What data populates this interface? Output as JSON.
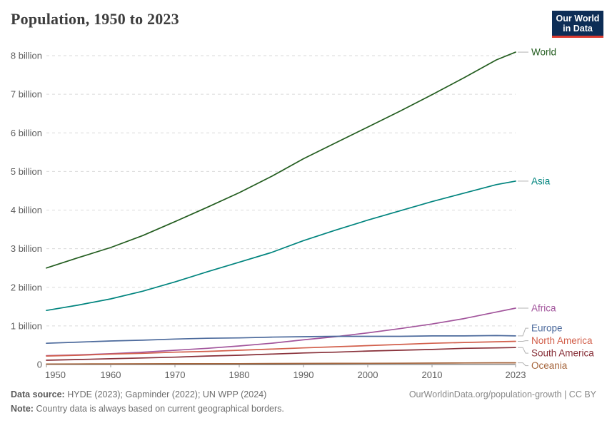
{
  "header": {
    "title": "Population, 1950 to 2023",
    "logo": {
      "line1": "Our World",
      "line2": "in Data",
      "bg_color": "#0d2d56",
      "accent_color": "#dc3a2f"
    }
  },
  "chart_data": {
    "type": "line",
    "title": "Population, 1950 to 2023",
    "xlabel": "",
    "ylabel": "",
    "xlim": [
      1950,
      2023
    ],
    "ylim": [
      0,
      8.35
    ],
    "grid": "horizontal-dashed",
    "legend_position": "right-of-line-ends",
    "x": [
      1950,
      1955,
      1960,
      1965,
      1970,
      1975,
      1980,
      1985,
      1990,
      1995,
      2000,
      2005,
      2010,
      2015,
      2020,
      2023
    ],
    "series": [
      {
        "name": "World",
        "color": "#235d1f",
        "values": [
          2.5,
          2.77,
          3.03,
          3.34,
          3.7,
          4.07,
          4.45,
          4.87,
          5.33,
          5.74,
          6.15,
          6.56,
          6.99,
          7.43,
          7.89,
          8.09
        ]
      },
      {
        "name": "Asia",
        "color": "#00847e",
        "values": [
          1.4,
          1.54,
          1.7,
          1.9,
          2.14,
          2.4,
          2.65,
          2.9,
          3.21,
          3.48,
          3.74,
          3.98,
          4.22,
          4.44,
          4.66,
          4.75
        ]
      },
      {
        "name": "Africa",
        "color": "#a2559c",
        "values": [
          0.23,
          0.25,
          0.28,
          0.32,
          0.37,
          0.42,
          0.48,
          0.55,
          0.64,
          0.72,
          0.82,
          0.93,
          1.05,
          1.19,
          1.36,
          1.46
        ]
      },
      {
        "name": "Europe",
        "color": "#4c6a9c",
        "values": [
          0.55,
          0.58,
          0.61,
          0.63,
          0.66,
          0.68,
          0.69,
          0.71,
          0.72,
          0.73,
          0.73,
          0.73,
          0.74,
          0.74,
          0.75,
          0.74
        ]
      },
      {
        "name": "North America",
        "color": "#d25f4b",
        "values": [
          0.22,
          0.24,
          0.27,
          0.29,
          0.32,
          0.34,
          0.37,
          0.4,
          0.43,
          0.46,
          0.49,
          0.52,
          0.55,
          0.57,
          0.59,
          0.6
        ]
      },
      {
        "name": "South America",
        "color": "#883039",
        "values": [
          0.11,
          0.13,
          0.15,
          0.17,
          0.19,
          0.22,
          0.24,
          0.27,
          0.3,
          0.32,
          0.35,
          0.37,
          0.39,
          0.42,
          0.43,
          0.44
        ]
      },
      {
        "name": "Oceania",
        "color": "#a5653c",
        "values": [
          0.013,
          0.014,
          0.016,
          0.018,
          0.02,
          0.021,
          0.023,
          0.025,
          0.027,
          0.029,
          0.031,
          0.034,
          0.037,
          0.04,
          0.044,
          0.045
        ]
      }
    ],
    "xticks": [
      1950,
      1960,
      1970,
      1980,
      1990,
      2000,
      2010,
      2023
    ],
    "yticks": [
      0,
      1,
      2,
      3,
      4,
      5,
      6,
      7,
      8
    ],
    "ytick_labels": [
      "0",
      "1 billion",
      "2 billion",
      "3 billion",
      "4 billion",
      "5 billion",
      "6 billion",
      "7 billion",
      "8 billion"
    ]
  },
  "footer": {
    "data_source_label": "Data source:",
    "data_source_value": "HYDE (2023); Gapminder (2022); UN WPP (2024)",
    "note_label": "Note:",
    "note_value": "Country data is always based on current geographical borders.",
    "credit": "OurWorldinData.org/population-growth | CC BY"
  }
}
